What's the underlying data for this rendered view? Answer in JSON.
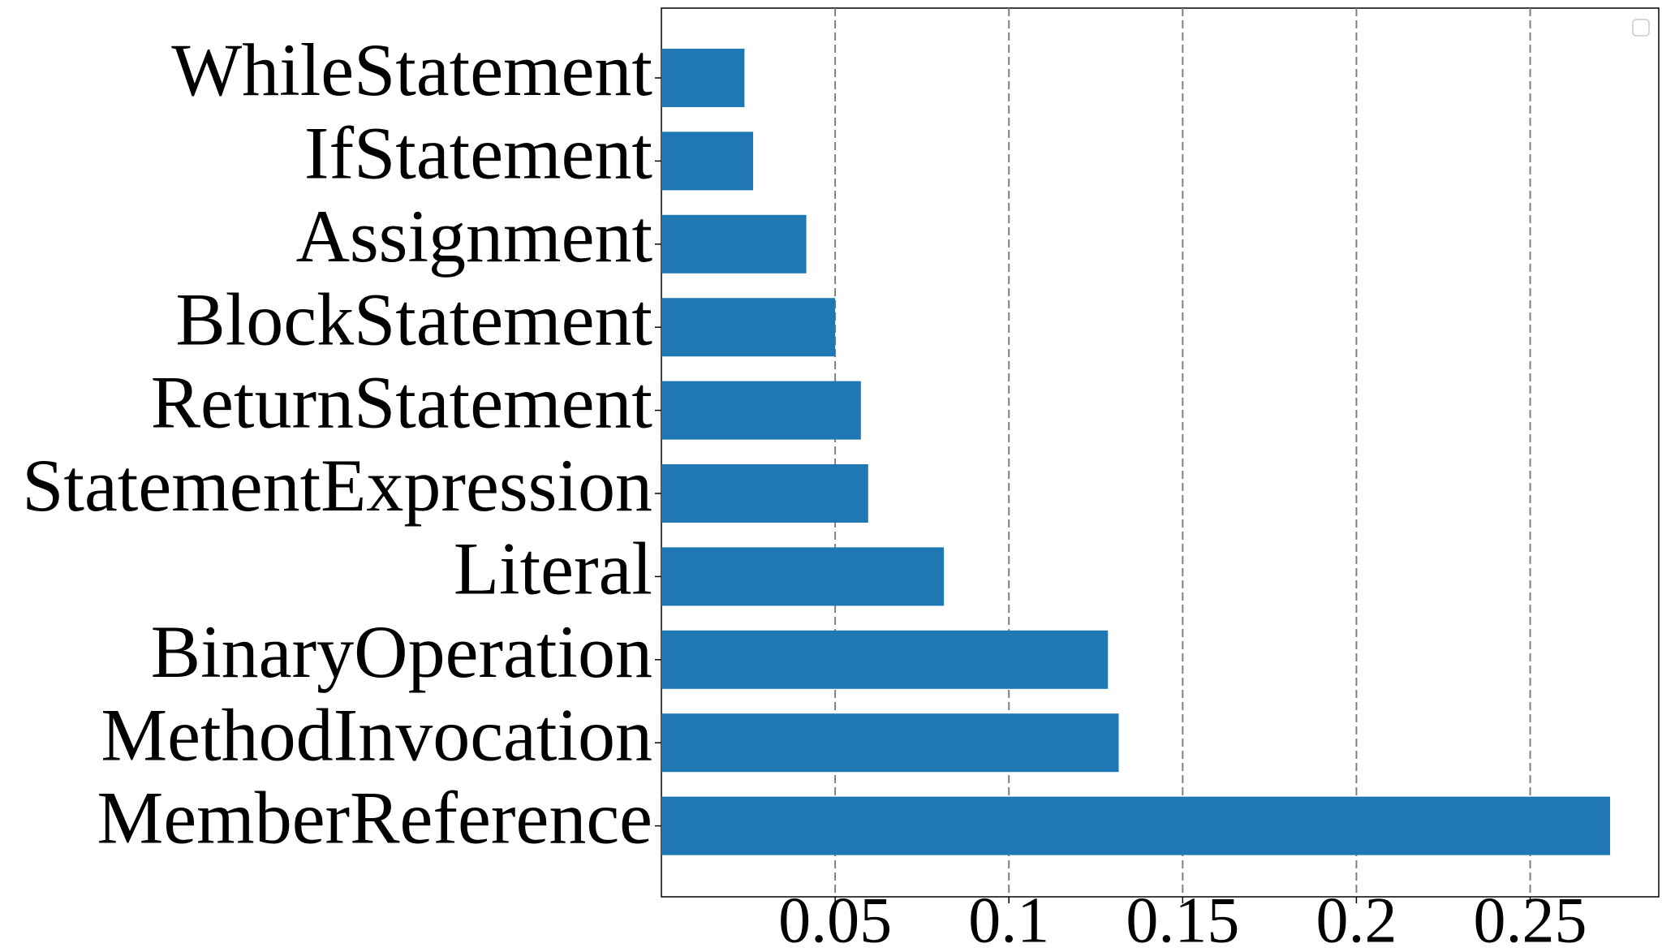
{
  "chart_data": {
    "type": "barh",
    "categories": [
      "WhileStatement",
      "IfStatement",
      "Assignment",
      "BlockStatement",
      "ReturnStatement",
      "StatementExpression",
      "Literal",
      "BinaryOperation",
      "MethodInvocation",
      "MemberReference"
    ],
    "values": [
      0.0239,
      0.0264,
      0.0417,
      0.05,
      0.0574,
      0.0595,
      0.0813,
      0.1285,
      0.1316,
      0.273
    ],
    "color": "#1f77b4",
    "xlim": [
      0,
      0.287
    ],
    "xticks": [
      0.05,
      0.1,
      0.15,
      0.2,
      0.25
    ],
    "grid": true
  }
}
